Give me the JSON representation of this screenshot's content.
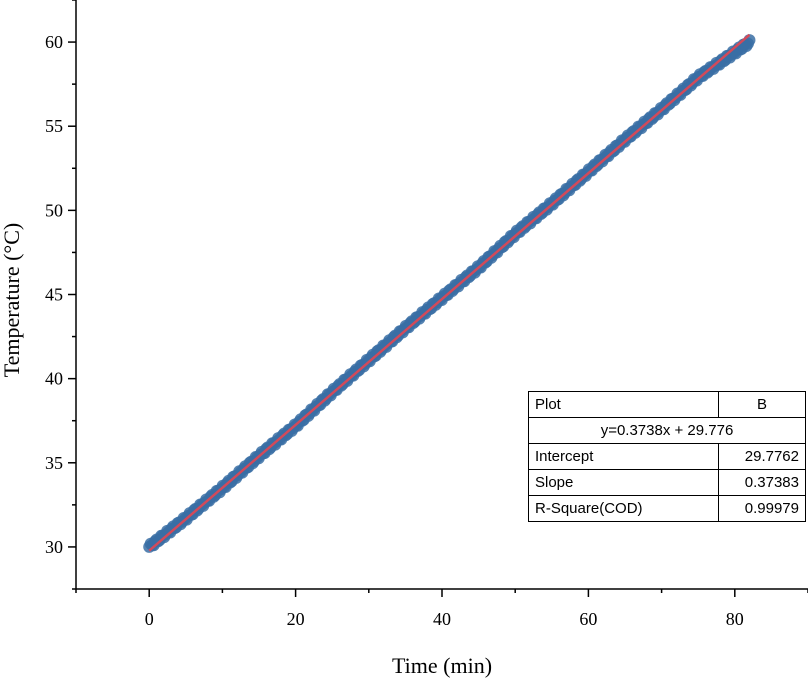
{
  "chart_data": {
    "type": "scatter",
    "xlabel": "Time (min)",
    "ylabel": "Temperature (°C)",
    "xlim": [
      -10,
      90
    ],
    "ylim": [
      27.5,
      62.5
    ],
    "x_ticks": [
      0,
      20,
      40,
      60,
      80
    ],
    "y_ticks": [
      30,
      35,
      40,
      45,
      50,
      55,
      60
    ],
    "grid": false,
    "series": [
      {
        "kind": "scatter",
        "color": "#3a6ea5",
        "x_range": [
          0,
          82
        ],
        "points": [
          [
            0,
            30.0
          ],
          [
            5,
            31.7
          ],
          [
            10,
            33.5
          ],
          [
            15,
            35.4
          ],
          [
            20,
            37.2
          ],
          [
            25,
            39.2
          ],
          [
            30,
            41.1
          ],
          [
            35,
            43.0
          ],
          [
            40,
            44.8
          ],
          [
            45,
            46.6
          ],
          [
            50,
            48.6
          ],
          [
            55,
            50.4
          ],
          [
            60,
            52.3
          ],
          [
            65,
            54.2
          ],
          [
            70,
            56.0
          ],
          [
            75,
            57.9
          ],
          [
            82,
            60.0
          ]
        ]
      },
      {
        "kind": "fit-line",
        "color": "#d24a5a",
        "intercept": 29.7762,
        "slope": 0.37383,
        "x_range": [
          0,
          82
        ]
      }
    ],
    "fit_table": {
      "plot_label": "Plot",
      "plot_value": "B",
      "equation": "y=0.3738x + 29.776",
      "rows": [
        {
          "label": "Intercept",
          "value": "29.7762"
        },
        {
          "label": "Slope",
          "value": "0.37383"
        },
        {
          "label": "R-Square(COD)",
          "value": "0.99979"
        }
      ]
    }
  }
}
